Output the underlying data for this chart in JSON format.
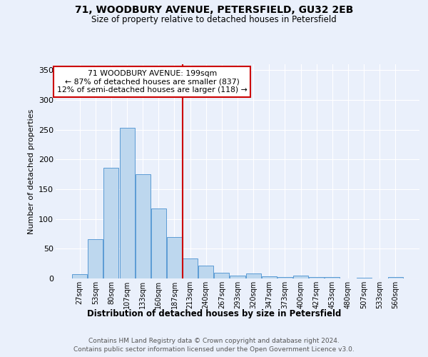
{
  "title1": "71, WOODBURY AVENUE, PETERSFIELD, GU32 2EB",
  "title2": "Size of property relative to detached houses in Petersfield",
  "xlabel": "Distribution of detached houses by size in Petersfield",
  "ylabel": "Number of detached properties",
  "categories": [
    "27sqm",
    "53sqm",
    "80sqm",
    "107sqm",
    "133sqm",
    "160sqm",
    "187sqm",
    "213sqm",
    "240sqm",
    "267sqm",
    "293sqm",
    "320sqm",
    "347sqm",
    "373sqm",
    "400sqm",
    "427sqm",
    "453sqm",
    "480sqm",
    "507sqm",
    "533sqm",
    "560sqm"
  ],
  "values": [
    7,
    66,
    186,
    253,
    175,
    118,
    70,
    34,
    22,
    10,
    5,
    8,
    4,
    3,
    5,
    3,
    2,
    0,
    1,
    0,
    2
  ],
  "bar_color": "#bdd7ee",
  "bar_edge_color": "#5b9bd5",
  "vline_color": "#cc0000",
  "vline_x": 6.5,
  "annotation_text": "71 WOODBURY AVENUE: 199sqm\n← 87% of detached houses are smaller (837)\n12% of semi-detached houses are larger (118) →",
  "annotation_box_color": "#ffffff",
  "annotation_box_edge": "#cc0000",
  "ylim": [
    0,
    360
  ],
  "yticks": [
    0,
    50,
    100,
    150,
    200,
    250,
    300,
    350
  ],
  "bg_color": "#eaf0fb",
  "footer1": "Contains HM Land Registry data © Crown copyright and database right 2024.",
  "footer2": "Contains public sector information licensed under the Open Government Licence v3.0."
}
